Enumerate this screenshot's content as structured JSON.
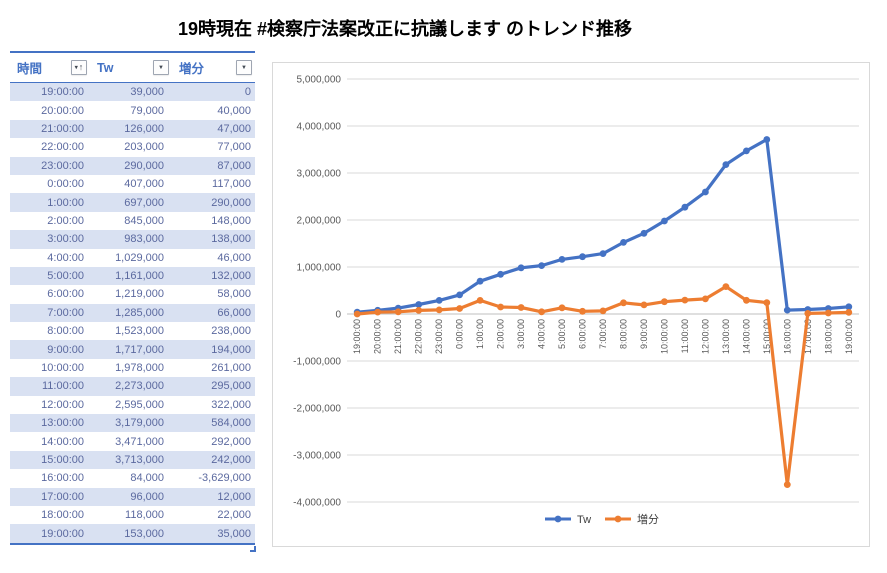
{
  "page": {
    "title": "19時現在 #検察庁法案改正に抗議します のトレンド推移"
  },
  "colors": {
    "accent_blue": "#4472C4",
    "accent_orange": "#ED7D31",
    "table_band": "#D9E1F2",
    "table_text": "#5B699F",
    "gridline": "#D9D9D9",
    "axis_line": "#BFBFBF",
    "axis_text": "#595959"
  },
  "table": {
    "columns": [
      {
        "label": "時間",
        "icon": "sort-ascending-filter-icon"
      },
      {
        "label": "Tw",
        "icon": "filter-dropdown-icon"
      },
      {
        "label": "増分",
        "icon": "filter-dropdown-icon"
      }
    ],
    "rows": [
      {
        "time": "19:00:00",
        "tw": "39,000",
        "delta": "0"
      },
      {
        "time": "20:00:00",
        "tw": "79,000",
        "delta": "40,000"
      },
      {
        "time": "21:00:00",
        "tw": "126,000",
        "delta": "47,000"
      },
      {
        "time": "22:00:00",
        "tw": "203,000",
        "delta": "77,000"
      },
      {
        "time": "23:00:00",
        "tw": "290,000",
        "delta": "87,000"
      },
      {
        "time": "0:00:00",
        "tw": "407,000",
        "delta": "117,000"
      },
      {
        "time": "1:00:00",
        "tw": "697,000",
        "delta": "290,000"
      },
      {
        "time": "2:00:00",
        "tw": "845,000",
        "delta": "148,000"
      },
      {
        "time": "3:00:00",
        "tw": "983,000",
        "delta": "138,000"
      },
      {
        "time": "4:00:00",
        "tw": "1,029,000",
        "delta": "46,000"
      },
      {
        "time": "5:00:00",
        "tw": "1,161,000",
        "delta": "132,000"
      },
      {
        "time": "6:00:00",
        "tw": "1,219,000",
        "delta": "58,000"
      },
      {
        "time": "7:00:00",
        "tw": "1,285,000",
        "delta": "66,000"
      },
      {
        "time": "8:00:00",
        "tw": "1,523,000",
        "delta": "238,000"
      },
      {
        "time": "9:00:00",
        "tw": "1,717,000",
        "delta": "194,000"
      },
      {
        "time": "10:00:00",
        "tw": "1,978,000",
        "delta": "261,000"
      },
      {
        "time": "11:00:00",
        "tw": "2,273,000",
        "delta": "295,000"
      },
      {
        "time": "12:00:00",
        "tw": "2,595,000",
        "delta": "322,000"
      },
      {
        "time": "13:00:00",
        "tw": "3,179,000",
        "delta": "584,000"
      },
      {
        "time": "14:00:00",
        "tw": "3,471,000",
        "delta": "292,000"
      },
      {
        "time": "15:00:00",
        "tw": "3,713,000",
        "delta": "242,000"
      },
      {
        "time": "16:00:00",
        "tw": "84,000",
        "delta": "-3,629,000"
      },
      {
        "time": "17:00:00",
        "tw": "96,000",
        "delta": "12,000"
      },
      {
        "time": "18:00:00",
        "tw": "118,000",
        "delta": "22,000"
      },
      {
        "time": "19:00:00",
        "tw": "153,000",
        "delta": "35,000"
      }
    ]
  },
  "chart_data": {
    "type": "line",
    "title": "",
    "xlabel": "",
    "ylabel": "",
    "categories": [
      "19:00:00",
      "20:00:00",
      "21:00:00",
      "22:00:00",
      "23:00:00",
      "0:00:00",
      "1:00:00",
      "2:00:00",
      "3:00:00",
      "4:00:00",
      "5:00:00",
      "6:00:00",
      "7:00:00",
      "8:00:00",
      "9:00:00",
      "10:00:00",
      "11:00:00",
      "12:00:00",
      "13:00:00",
      "14:00:00",
      "15:00:00",
      "16:00:00",
      "17:00:00",
      "18:00:00",
      "19:00:00"
    ],
    "series": [
      {
        "name": "Tw",
        "color": "#4472C4",
        "values": [
          39000,
          79000,
          126000,
          203000,
          290000,
          407000,
          697000,
          845000,
          983000,
          1029000,
          1161000,
          1219000,
          1285000,
          1523000,
          1717000,
          1978000,
          2273000,
          2595000,
          3179000,
          3471000,
          3713000,
          84000,
          96000,
          118000,
          153000
        ]
      },
      {
        "name": "増分",
        "color": "#ED7D31",
        "values": [
          0,
          40000,
          47000,
          77000,
          87000,
          117000,
          290000,
          148000,
          138000,
          46000,
          132000,
          58000,
          66000,
          238000,
          194000,
          261000,
          295000,
          322000,
          584000,
          292000,
          242000,
          -3629000,
          12000,
          22000,
          35000
        ]
      }
    ],
    "ylim": [
      -4000000,
      5000000
    ],
    "ytick_step": 1000000,
    "ytick_labels": [
      "5,000,000",
      "4,000,000",
      "3,000,000",
      "2,000,000",
      "1,000,000",
      "0",
      "-1,000,000",
      "-2,000,000",
      "-3,000,000",
      "-4,000,000"
    ],
    "grid": true,
    "legend_position": "bottom",
    "x_label_rotation": -90
  }
}
